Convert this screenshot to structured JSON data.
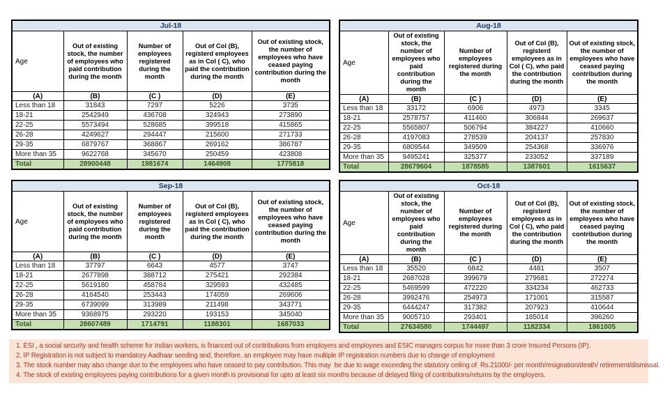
{
  "colors": {
    "month_header_bg": "#dce6f1",
    "month_header_text": "#1f3864",
    "total_row_bg": "#c6e0b4",
    "total_row_text": "#375623",
    "notes_bg": "#fce4d6",
    "notes_text": "#9c3a28",
    "border": "#000000"
  },
  "shared": {
    "age_label": "Age"
  },
  "tables": [
    {
      "title": "Jul-18",
      "columns": [
        "Age",
        "Out of existing stock, the number of employees who paid contribution during the month",
        "Number of employees registered during the month",
        "Out of Col (B), registerd employees as in Col ( C), who paid the contribution during the month",
        "Out of existing stock, the number of  employees who have ceased paying contribution during the month"
      ],
      "column_letters": [
        "(A)",
        "(B)",
        "(C )",
        "(D)",
        "(E)"
      ],
      "rows": [
        {
          "age": "Less than 18",
          "values": [
            "31843",
            "7297",
            "5226",
            "3735"
          ]
        },
        {
          "age": "18-21",
          "values": [
            "2542949",
            "436708",
            "324943",
            "273890"
          ]
        },
        {
          "age": "22-25",
          "values": [
            "5573494",
            "528685",
            "399518",
            "415865"
          ]
        },
        {
          "age": "26-28",
          "values": [
            "4249627",
            "294447",
            "215600",
            "271733"
          ]
        },
        {
          "age": "29-35",
          "values": [
            "6879767",
            "368867",
            "269162",
            "386787"
          ]
        },
        {
          "age": "More than 35",
          "values": [
            "9622768",
            "345670",
            "250459",
            "423808"
          ]
        }
      ],
      "total": {
        "label": "Total",
        "values": [
          "28900448",
          "1981674",
          "1464908",
          "1775818"
        ]
      }
    },
    {
      "title": "Aug-18",
      "columns": [
        "Age",
        "Out of existing stock, the number of employees who paid contribution during the month",
        "Number of employees registered during the month",
        "Out of Col (B), registerd employees as in Col ( C), who paid the contribution during the month",
        "Out of existing stock, the number of  employees who have ceased paying contribution during the month"
      ],
      "column_letters": [
        "(A)",
        "(B)",
        "(C )",
        "(D)",
        "(E)"
      ],
      "rows": [
        {
          "age": "Less than 18",
          "values": [
            "33172",
            "6906",
            "4973",
            "3345"
          ]
        },
        {
          "age": "18-21",
          "values": [
            "2578757",
            "411460",
            "306844",
            "269637"
          ]
        },
        {
          "age": "22-25",
          "values": [
            "5565807",
            "506794",
            "384227",
            "410660"
          ]
        },
        {
          "age": "26-28",
          "values": [
            "4197083",
            "278539",
            "204137",
            "257830"
          ]
        },
        {
          "age": "29-35",
          "values": [
            "6809544",
            "349509",
            "254368",
            "336976"
          ]
        },
        {
          "age": "More than 35",
          "values": [
            "9495241",
            "325377",
            "233052",
            "337189"
          ]
        }
      ],
      "total": {
        "label": "Total",
        "values": [
          "28679604",
          "1878585",
          "1387601",
          "1615637"
        ]
      }
    },
    {
      "title": "Sep-18",
      "columns": [
        "Age",
        "Out of existing stock, the number of employees who paid contribution during the month",
        "Number of employees registered during the month",
        "Out of Col (B), registerd employees as in Col ( C), who paid the contribution during the month",
        "Out of existing stock, the number of  employees who have ceased paying contribution during the month"
      ],
      "column_letters": [
        "(A)",
        "(B)",
        "(C )",
        "(D)",
        "(E)"
      ],
      "rows": [
        {
          "age": "Less than 18",
          "values": [
            "37797",
            "6643",
            "4577",
            "3747"
          ]
        },
        {
          "age": "18-21",
          "values": [
            "2677898",
            "388712",
            "275421",
            "292384"
          ]
        },
        {
          "age": "22-25",
          "values": [
            "5619180",
            "458784",
            "329593",
            "432485"
          ]
        },
        {
          "age": "26-28",
          "values": [
            "4164540",
            "253443",
            "174059",
            "269606"
          ]
        },
        {
          "age": "29-35",
          "values": [
            "6739099",
            "313989",
            "211498",
            "343771"
          ]
        },
        {
          "age": "More than 35",
          "values": [
            "9368975",
            "293220",
            "193153",
            "345040"
          ]
        }
      ],
      "total": {
        "label": "Total",
        "values": [
          "28607489",
          "1714791",
          "1188301",
          "1687033"
        ]
      }
    },
    {
      "title": "Oct-18",
      "columns": [
        "Age",
        "Out of existing stock, the number of employees who paid contribution during the month",
        "Number of employees registered during the month",
        "Out of Col (B), registerd employees as in Col ( C), who paid the contribution during the month",
        "Out of existing stock, the number of  employees who have ceased paying contribution during the month"
      ],
      "column_letters": [
        "(A)",
        "(B)",
        "(C )",
        "(D)",
        "(E)"
      ],
      "rows": [
        {
          "age": "Less than 18",
          "values": [
            "35520",
            "6842",
            "4481",
            "3507"
          ]
        },
        {
          "age": "18-21",
          "values": [
            "2687028",
            "399679",
            "279681",
            "272274"
          ]
        },
        {
          "age": "22-25",
          "values": [
            "5469599",
            "472220",
            "334234",
            "462733"
          ]
        },
        {
          "age": "26-28",
          "values": [
            "3992476",
            "254973",
            "171001",
            "315587"
          ]
        },
        {
          "age": "29-35",
          "values": [
            "6444247",
            "317382",
            "207923",
            "410644"
          ]
        },
        {
          "age": "More than 35",
          "values": [
            "9005710",
            "293401",
            "185014",
            "396260"
          ]
        }
      ],
      "total": {
        "label": "Total",
        "values": [
          "27634580",
          "1744497",
          "1182334",
          "1861005"
        ]
      }
    }
  ],
  "notes": [
    "1. ESI , a social security and health scheme for Indian workers, is financed out of contributions from employers and employees and ESIC manages corpus for more than 3 crore Insured Persons (IP).",
    "2. IP Registration is not subject to mandatory Aadhaar seeding and, therefore, an employee may have multiple IP registration numbers due to change of employment",
    "3. The stock number may also change due to the employees who have ceased to pay contribution. This may  be due to wage exceeding the statutory ceiling of  Rs.21000/- per month/resignation/death/ retirement/dismissal.",
    "4. The stock of existing employees paying contributions for a given month is provisional for upto at least six months because of delayed filing of contributions/returns by the employers."
  ]
}
